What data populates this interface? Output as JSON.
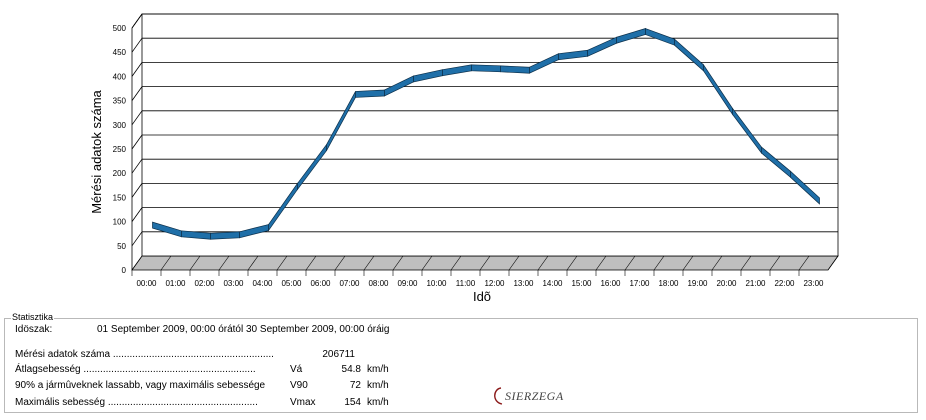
{
  "chart_data": {
    "type": "line",
    "title": "",
    "xlabel": "Idõ",
    "ylabel": "Mérési adatok száma",
    "categories": [
      "00:00",
      "01:00",
      "02:00",
      "03:00",
      "04:00",
      "05:00",
      "06:00",
      "07:00",
      "08:00",
      "09:00",
      "10:00",
      "11:00",
      "12:00",
      "13:00",
      "14:00",
      "15:00",
      "16:00",
      "17:00",
      "18:00",
      "19:00",
      "20:00",
      "21:00",
      "22:00",
      "23:00"
    ],
    "yticks": [
      "0",
      "50",
      "100",
      "150",
      "200",
      "250",
      "300",
      "350",
      "400",
      "450",
      "500"
    ],
    "ylim": [
      0,
      500
    ],
    "grid": true,
    "series": [
      {
        "values": [
          70,
          52,
          47,
          50,
          65,
          150,
          230,
          340,
          343,
          372,
          385,
          395,
          393,
          390,
          418,
          425,
          452,
          470,
          448,
          395,
          305,
          225,
          175,
          120
        ]
      }
    ],
    "colors": {
      "line": "#1f6fa8",
      "line_edge": "#0c2f4a",
      "grid": "#000000",
      "floor": "#bfbfbf"
    }
  },
  "stats": {
    "legend": "Statisztika",
    "period_label": "Idöszak:",
    "period_value": "01 September 2009, 00:00 órától 30 September 2009, 00:00 óráig",
    "rows": [
      {
        "label": "Mérési adatok száma ..........................................................",
        "symbol": "",
        "value": "206711",
        "unit": ""
      },
      {
        "label": "Átlagsebesség ..............................................................",
        "symbol": "Vá",
        "value": "54.8",
        "unit": "km/h"
      },
      {
        "label": "90% a jármûveknek lassabb, vagy maximális sebessége",
        "symbol": "V90",
        "value": "72",
        "unit": "km/h"
      },
      {
        "label": "Maximális sebesség ......................................................",
        "symbol": "Vmax",
        "value": "154",
        "unit": "km/h"
      }
    ]
  },
  "logo": {
    "text": "SIERZEGA"
  }
}
